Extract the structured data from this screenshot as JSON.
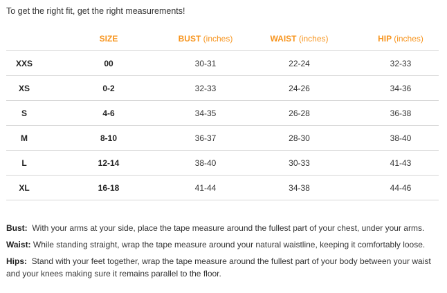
{
  "intro": "To get the right fit, get the right measurements!",
  "colors": {
    "header_accent": "#f7941d",
    "row_divider": "#d6d6d6",
    "text": "#333333"
  },
  "table": {
    "headers": [
      {
        "label": "",
        "unit": ""
      },
      {
        "label": "SIZE",
        "unit": ""
      },
      {
        "label": "BUST",
        "unit": "(inches)"
      },
      {
        "label": "WAIST",
        "unit": "(inches)"
      },
      {
        "label": "HIP",
        "unit": "(inches)"
      }
    ],
    "rows": [
      {
        "label": "XXS",
        "size": "00",
        "bust": "30-31",
        "waist": "22-24",
        "hip": "32-33"
      },
      {
        "label": "XS",
        "size": "0-2",
        "bust": "32-33",
        "waist": "24-26",
        "hip": "34-36"
      },
      {
        "label": "S",
        "size": "4-6",
        "bust": "34-35",
        "waist": "26-28",
        "hip": "36-38"
      },
      {
        "label": "M",
        "size": "8-10",
        "bust": "36-37",
        "waist": "28-30",
        "hip": "38-40"
      },
      {
        "label": "L",
        "size": "12-14",
        "bust": "38-40",
        "waist": "30-33",
        "hip": "41-43"
      },
      {
        "label": "XL",
        "size": "16-18",
        "bust": "41-44",
        "waist": "34-38",
        "hip": "44-46"
      }
    ]
  },
  "notes": {
    "bust": {
      "term": "Bust:",
      "text": "With your arms at your side, place the tape measure around the fullest part of your chest, under your arms."
    },
    "waist": {
      "term": "Waist:",
      "text": "While standing straight, wrap the tape measure around your natural waistline, keeping it comfortably loose."
    },
    "hips": {
      "term": "Hips:",
      "text": "Stand with your feet together, wrap the tape measure around the fullest part of your body between your waist and your knees making sure it remains parallel to the floor."
    }
  }
}
